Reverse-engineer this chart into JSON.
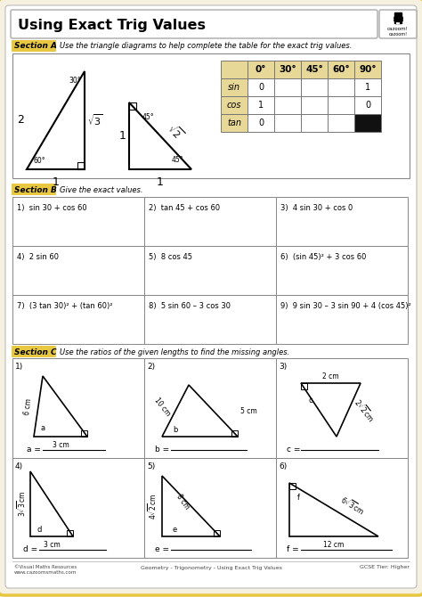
{
  "title": "Using Exact Trig Values",
  "bg_outer": "#f5f0e0",
  "bg_inner": "#ffffff",
  "border_outer": "#e8c840",
  "section_a_label": "Section A",
  "section_a_text": "Use the triangle diagrams to help complete the table for the exact trig values.",
  "section_b_label": "Section B",
  "section_b_text": "Give the exact values.",
  "section_c_label": "Section C",
  "section_c_text": "Use the ratios of the given lengths to find the missing angles.",
  "table_headers": [
    "",
    "0°",
    "30°",
    "45°",
    "60°",
    "90°"
  ],
  "table_rows": [
    [
      "sin",
      "0",
      "",
      "",
      "",
      "1"
    ],
    [
      "cos",
      "1",
      "",
      "",
      "",
      "0"
    ],
    [
      "tan",
      "0",
      "",
      "",
      "",
      ""
    ]
  ],
  "section_b_problems": [
    [
      "1)  sin 30 + cos 60",
      "2)  tan 45 + cos 60",
      "3)  4 sin 30 + cos 0"
    ],
    [
      "4)  2 sin 60",
      "5)  8 cos 45",
      "6)  (sin 45)² + 3 cos 60"
    ],
    [
      "7)  (3 tan 30)² + (tan 60)²",
      "8)  5 sin 60 – 3 cos 30",
      "9)  9 sin 30 – 3 sin 90 + 4 (cos 45)²"
    ]
  ],
  "footer_left": "©Visual Maths Resources\nwww.cazoomsmaths.com",
  "footer_mid": "Geometry - Trigonometry - Using Exact Trig Values",
  "footer_right": "GCSE Tier: Higher"
}
